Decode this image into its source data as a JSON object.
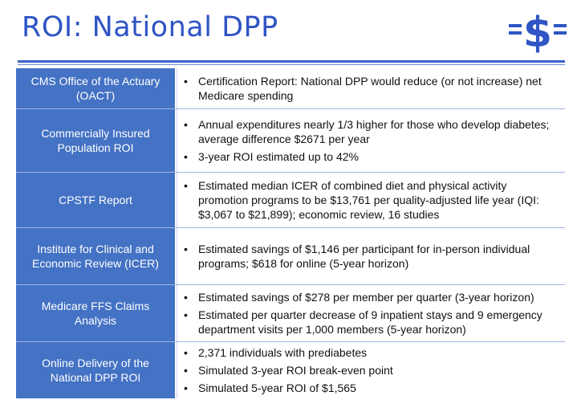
{
  "title": "ROI: National DPP",
  "logo": {
    "icon": "equals-dollar-icon",
    "color": "#2f55c4"
  },
  "rows": [
    {
      "label": "CMS Office of the Actuary (OACT)",
      "bullets": [
        "Certification Report: National DPP would reduce (or not increase) net Medicare spending"
      ]
    },
    {
      "label": "Commercially Insured Population ROI",
      "bullets": [
        "Annual expenditures nearly 1/3 higher for those who develop diabetes; average difference $2671 per year",
        "3-year ROI estimated up to 42%"
      ]
    },
    {
      "label": "CPSTF Report",
      "bullets": [
        "Estimated median ICER of combined diet and physical activity promotion programs to be $13,761 per quality-adjusted life year (IQI: $3,067 to $21,899); economic review, 16 studies"
      ]
    },
    {
      "label": "Institute for Clinical and Economic Review (ICER)",
      "bullets": [
        "Estimated savings of $1,146 per participant for in-person individual programs; $618 for online (5-year horizon)"
      ]
    },
    {
      "label": "Medicare FFS Claims Analysis",
      "bullets": [
        "Estimated savings of $278 per member per quarter (3-year horizon)",
        "Estimated per quarter decrease of 9 inpatient stays and 9 emergency department visits per 1,000 members (5-year horizon)"
      ]
    },
    {
      "label": "Online Delivery of the National DPP ROI",
      "bullets": [
        "2,371 individuals with prediabetes",
        "Simulated 3-year ROI break-even point",
        "Simulated 5-year ROI of $1,565"
      ]
    }
  ],
  "colors": {
    "header_fill": "#4472c4",
    "title": "#2f55c4"
  }
}
